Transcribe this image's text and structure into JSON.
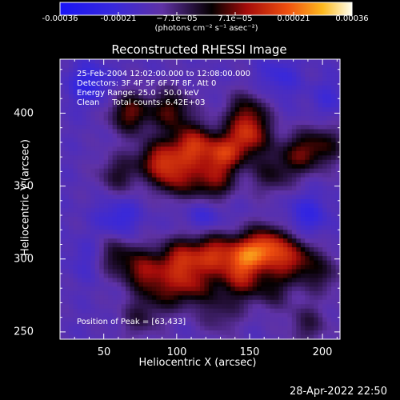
{
  "chart_data": {
    "type": "heatmap",
    "title": "Reconstructed RHESSI Image",
    "xlabel": "Heliocentric X (arcsec)",
    "ylabel": "Heliocentric Y (arcsec)",
    "xlim": [
      20,
      212
    ],
    "ylim": [
      245,
      437
    ],
    "x_ticks": [
      "50",
      "100",
      "150",
      "200"
    ],
    "y_ticks": [
      "250",
      "300",
      "350",
      "400"
    ],
    "colorbar": {
      "ticks": [
        "-0.00036",
        "-0.00021",
        "−7.1e−05",
        "7.1e−05",
        "0.00021",
        "0.00036"
      ],
      "range": [
        -0.00036,
        0.00036
      ],
      "units": "(photons cm⁻² s⁻¹ asec⁻²)"
    },
    "annotations": [
      "25-Feb-2004 12:02:00.000 to 12:08:00.000",
      "Detectors: 3F 4F 5F 6F 7F 8F, Att 0",
      "Energy Range: 25.0 - 50.0 keV",
      "Clean     Total counts: 6.42E+03"
    ],
    "peak_label": "Position of Peak = [63,433]",
    "peak": [
      63,
      433
    ],
    "timestamp": "28-Apr-2022 22:50",
    "sources": [
      {
        "x": 87,
        "y": 368,
        "amp": 0.00022
      },
      {
        "x": 110,
        "y": 378,
        "amp": 0.00026
      },
      {
        "x": 132,
        "y": 372,
        "amp": 0.00025
      },
      {
        "x": 150,
        "y": 384,
        "amp": 0.00022
      },
      {
        "x": 100,
        "y": 356,
        "amp": 0.0002
      },
      {
        "x": 124,
        "y": 352,
        "amp": 0.00019
      },
      {
        "x": 68,
        "y": 400,
        "amp": 0.0002
      },
      {
        "x": 96,
        "y": 402,
        "amp": 0.00018
      },
      {
        "x": 148,
        "y": 400,
        "amp": 0.00016
      },
      {
        "x": 184,
        "y": 372,
        "amp": 0.00017
      },
      {
        "x": 202,
        "y": 378,
        "amp": 0.00014
      },
      {
        "x": 60,
        "y": 358,
        "amp": 0.00012
      },
      {
        "x": 165,
        "y": 358,
        "amp": 0.00012
      },
      {
        "x": 78,
        "y": 292,
        "amp": 0.0002
      },
      {
        "x": 102,
        "y": 300,
        "amp": 0.00023
      },
      {
        "x": 124,
        "y": 304,
        "amp": 0.00024
      },
      {
        "x": 146,
        "y": 302,
        "amp": 0.00025
      },
      {
        "x": 162,
        "y": 308,
        "amp": 0.00027
      },
      {
        "x": 180,
        "y": 300,
        "amp": 0.00021
      },
      {
        "x": 112,
        "y": 282,
        "amp": 0.00018
      },
      {
        "x": 142,
        "y": 285,
        "amp": 0.00018
      },
      {
        "x": 58,
        "y": 302,
        "amp": 0.00014
      },
      {
        "x": 92,
        "y": 278,
        "amp": 0.00014
      },
      {
        "x": 200,
        "y": 290,
        "amp": 0.00011
      },
      {
        "x": 165,
        "y": 280,
        "amp": 0.00012
      },
      {
        "x": 75,
        "y": 260,
        "amp": 0.0001
      },
      {
        "x": 190,
        "y": 255,
        "amp": 0.0001
      },
      {
        "x": 130,
        "y": 262,
        "amp": 9e-05
      },
      {
        "x": 40,
        "y": 420,
        "amp": -0.00012
      },
      {
        "x": 170,
        "y": 425,
        "amp": -8e-05
      },
      {
        "x": 60,
        "y": 328,
        "amp": -0.0001
      },
      {
        "x": 120,
        "y": 330,
        "amp": -8e-05
      },
      {
        "x": 190,
        "y": 330,
        "amp": -0.0001
      },
      {
        "x": 40,
        "y": 300,
        "amp": -6e-05
      },
      {
        "x": 205,
        "y": 410,
        "amp": -6e-05
      }
    ]
  }
}
